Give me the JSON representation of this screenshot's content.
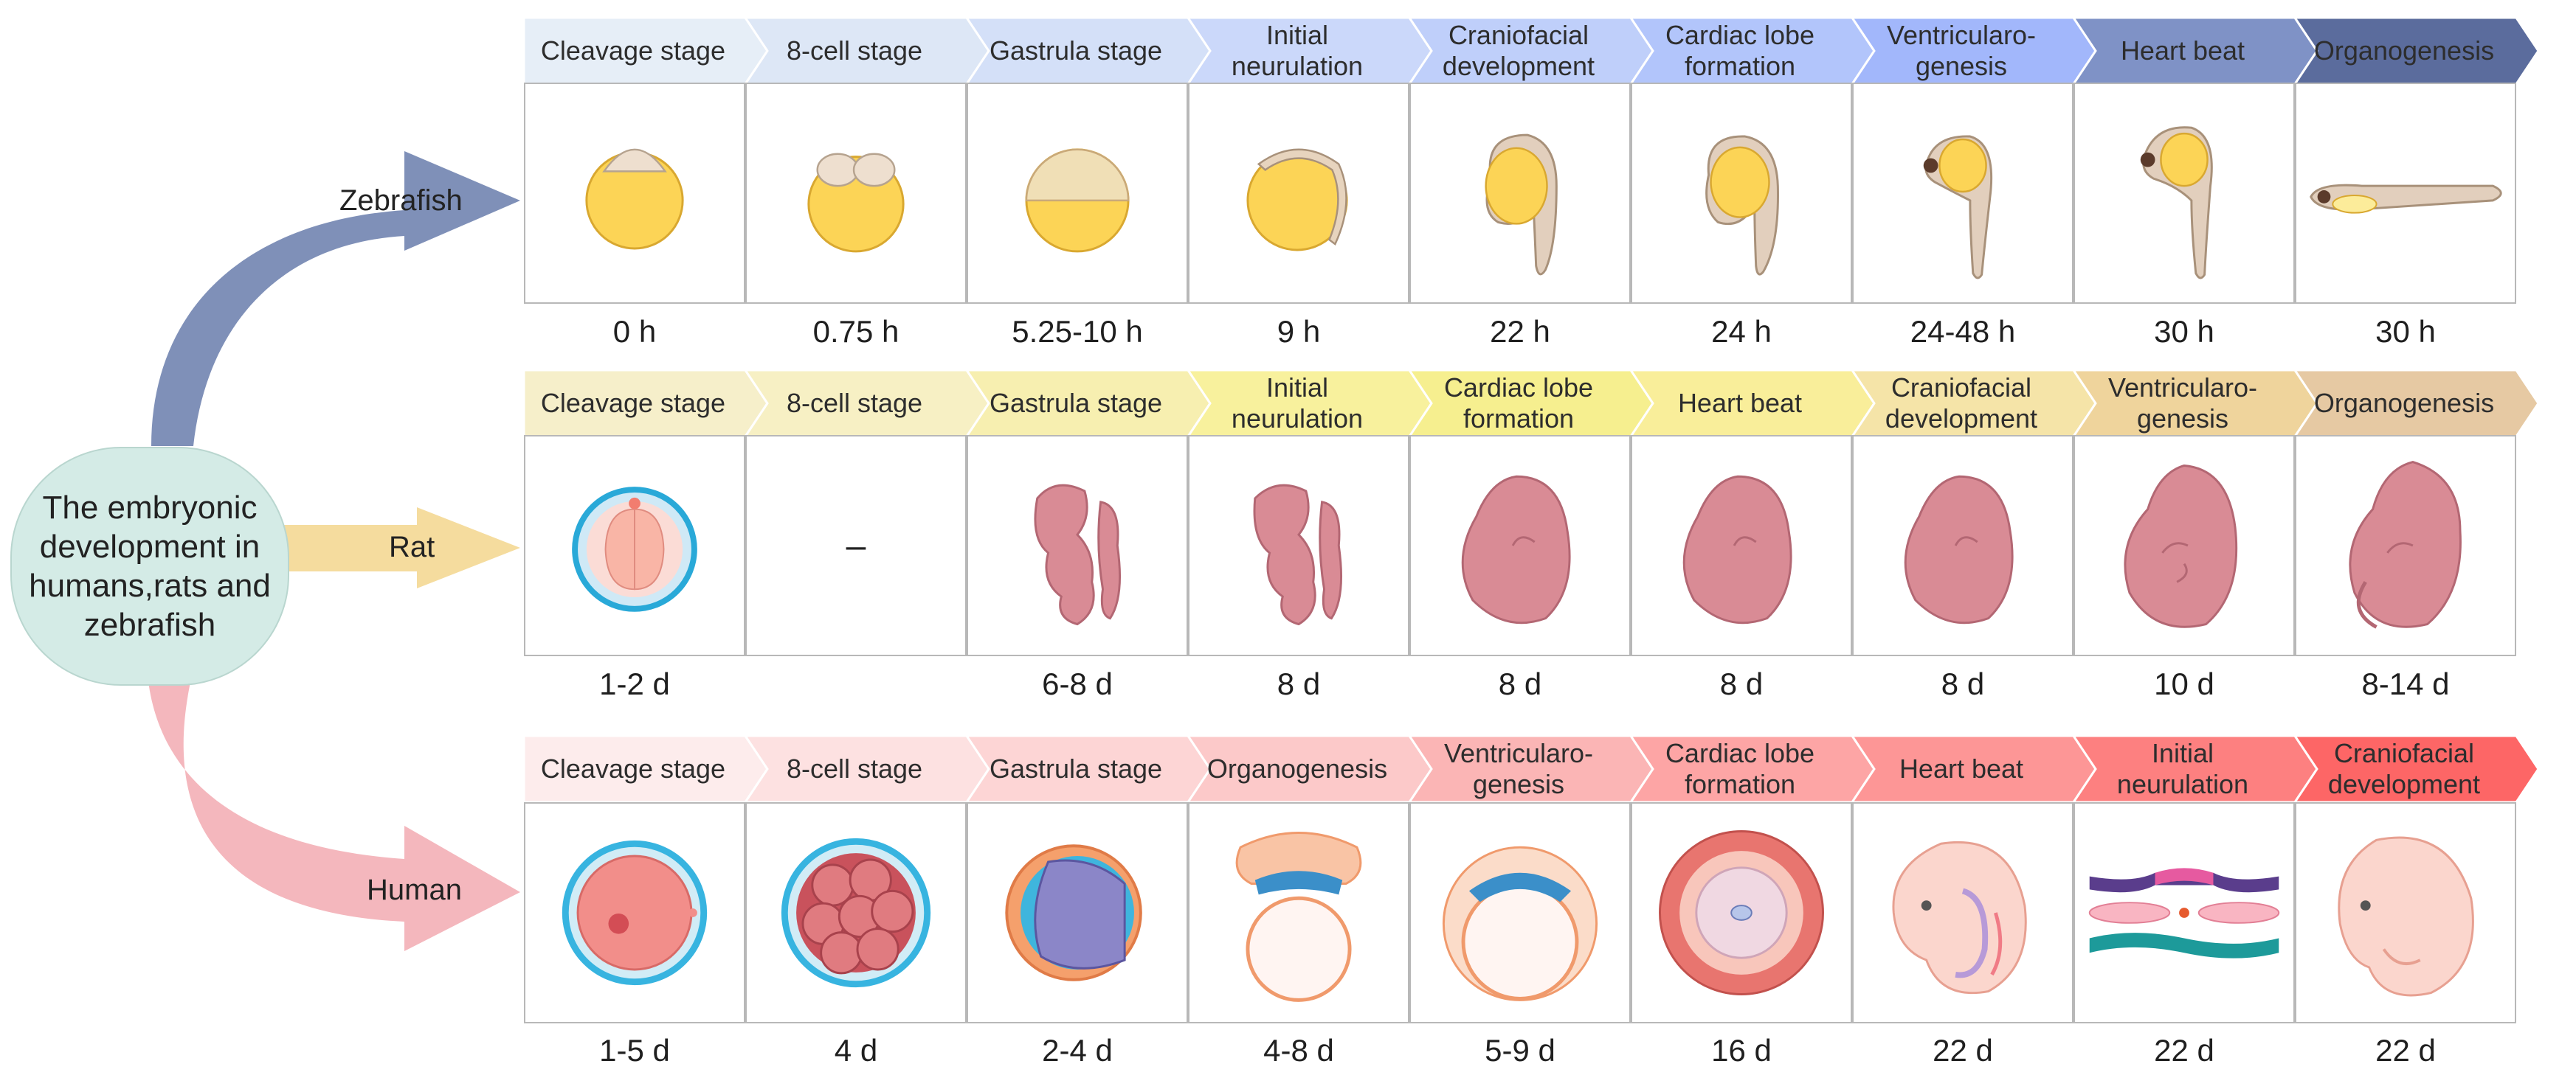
{
  "center": {
    "label": "The embryonic development in humans,rats and zebrafish"
  },
  "species": {
    "zebrafish": "Zebrafish",
    "rat": "Rat",
    "human": "Human"
  },
  "colors": {
    "zebrafish_arrow": "#7f90b8",
    "rat_arrow": "#f5dc9e",
    "human_arrow": "#f4b7bd",
    "center_fill": "#d4ebe6",
    "zebrafish_band": [
      "#e6eef7",
      "#dde7f6",
      "#d4e0f8",
      "#cbd8fa",
      "#bfcffa",
      "#b2c5fb",
      "#a2b7fb",
      "#7f92c6",
      "#5b6c9d"
    ],
    "rat_band": [
      "#f6efca",
      "#f7f0c4",
      "#f7efb0",
      "#f8f19d",
      "#f6ef8f",
      "#f9ee9a",
      "#f5e4a8",
      "#efd49c",
      "#e6c9a3"
    ],
    "human_band": [
      "#fdecec",
      "#fde1e1",
      "#fdd5d5",
      "#fcc9c9",
      "#fbb5b5",
      "#fda5a5",
      "#fd9696",
      "#fd8080",
      "#fd6666"
    ]
  },
  "zebrafish": {
    "stages": [
      "Cleavage stage",
      "8-cell stage",
      "Gastrula stage",
      "Initial\nneurulation",
      "Craniofacial\ndevelopment",
      "Cardiac lobe\nformation",
      "Ventricularo-\ngenesis",
      "Heart beat",
      "Organogenesis"
    ],
    "times": [
      "0 h",
      "0.75 h",
      "5.25-10 h",
      "9 h",
      "22 h",
      "24 h",
      "24-48 h",
      "30 h",
      "30 h"
    ]
  },
  "rat": {
    "stages": [
      "Cleavage stage",
      "8-cell stage",
      "Gastrula stage",
      "Initial\nneurulation",
      "Cardiac lobe\nformation",
      "Heart beat",
      "Craniofacial\ndevelopment",
      "Ventricularo-\ngenesis",
      "Organogenesis"
    ],
    "times": [
      "1-2 d",
      "",
      "6-8 d",
      "8 d",
      "8 d",
      "8 d",
      "8 d",
      "10 d",
      "8-14 d"
    ],
    "missing_mark": "–"
  },
  "human": {
    "stages": [
      "Cleavage stage",
      "8-cell stage",
      "Gastrula stage",
      "Organogenesis",
      "Ventricularo-\ngenesis",
      "Cardiac lobe\nformation",
      "Heart beat",
      "Initial\nneurulation",
      "Craniofacial\ndevelopment"
    ],
    "times": [
      "1-5 d",
      "4 d",
      "2-4 d",
      "4-8 d",
      "5-9 d",
      "16 d",
      "22 d",
      "22 d",
      "22 d"
    ]
  }
}
